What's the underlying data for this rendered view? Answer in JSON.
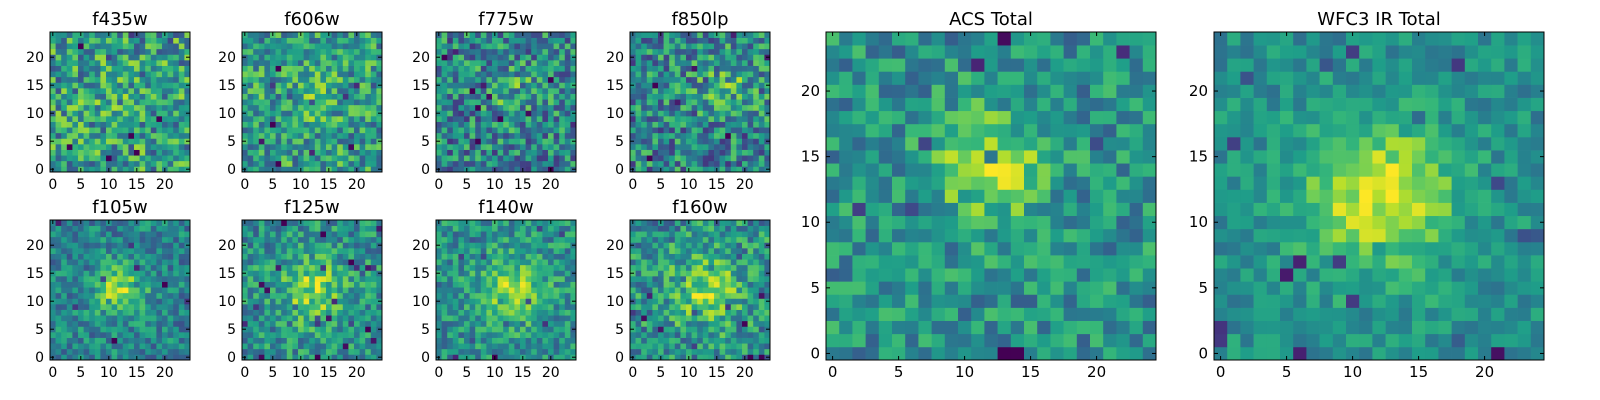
{
  "chart_data": [
    {
      "type": "heatmap",
      "title": "f435w",
      "grid_size": 25,
      "xlim": [
        0,
        24
      ],
      "ylim": [
        0,
        24
      ],
      "xticks": [
        "0",
        "5",
        "10",
        "15",
        "20"
      ],
      "yticks": [
        "0",
        "5",
        "10",
        "15",
        "20"
      ],
      "colormap": "viridis",
      "seed": 11,
      "blob": {
        "x": 12,
        "y": 12,
        "sigma": 4.0,
        "strength": 0.05
      },
      "noise": 0.62,
      "base": 0.55
    },
    {
      "type": "heatmap",
      "title": "f606w",
      "grid_size": 25,
      "xlim": [
        0,
        24
      ],
      "ylim": [
        0,
        24
      ],
      "xticks": [
        "0",
        "5",
        "10",
        "15",
        "20"
      ],
      "yticks": [
        "0",
        "5",
        "10",
        "15",
        "20"
      ],
      "colormap": "viridis",
      "seed": 23,
      "blob": {
        "x": 12,
        "y": 13,
        "sigma": 4.0,
        "strength": 0.1
      },
      "noise": 0.55,
      "base": 0.55
    },
    {
      "type": "heatmap",
      "title": "f775w",
      "grid_size": 25,
      "xlim": [
        0,
        24
      ],
      "ylim": [
        0,
        24
      ],
      "xticks": [
        "0",
        "5",
        "10",
        "15",
        "20"
      ],
      "yticks": [
        "0",
        "5",
        "10",
        "15",
        "20"
      ],
      "colormap": "viridis",
      "seed": 37,
      "blob": {
        "x": 13,
        "y": 14,
        "sigma": 3.5,
        "strength": 0.15
      },
      "noise": 0.6,
      "base": 0.45
    },
    {
      "type": "heatmap",
      "title": "f850lp",
      "grid_size": 25,
      "xlim": [
        0,
        24
      ],
      "ylim": [
        0,
        24
      ],
      "xticks": [
        "0",
        "5",
        "10",
        "15",
        "20"
      ],
      "yticks": [
        "0",
        "5",
        "10",
        "15",
        "20"
      ],
      "colormap": "viridis",
      "seed": 41,
      "blob": {
        "x": 17,
        "y": 15,
        "sigma": 4.0,
        "strength": 0.18
      },
      "noise": 0.6,
      "base": 0.45
    },
    {
      "type": "heatmap",
      "title": "f105w",
      "grid_size": 25,
      "xlim": [
        0,
        24
      ],
      "ylim": [
        0,
        24
      ],
      "xticks": [
        "0",
        "5",
        "10",
        "15",
        "20"
      ],
      "yticks": [
        "0",
        "5",
        "10",
        "15",
        "20"
      ],
      "colormap": "viridis",
      "seed": 53,
      "blob": {
        "x": 12,
        "y": 12,
        "sigma": 3.2,
        "strength": 0.4
      },
      "noise": 0.4,
      "base": 0.45
    },
    {
      "type": "heatmap",
      "title": "f125w",
      "grid_size": 25,
      "xlim": [
        0,
        24
      ],
      "ylim": [
        0,
        24
      ],
      "xticks": [
        "0",
        "5",
        "10",
        "15",
        "20"
      ],
      "yticks": [
        "0",
        "5",
        "10",
        "15",
        "20"
      ],
      "colormap": "viridis",
      "seed": 67,
      "blob": {
        "x": 12,
        "y": 12,
        "sigma": 4.0,
        "strength": 0.32
      },
      "noise": 0.45,
      "base": 0.5
    },
    {
      "type": "heatmap",
      "title": "f140w",
      "grid_size": 25,
      "xlim": [
        0,
        24
      ],
      "ylim": [
        0,
        24
      ],
      "xticks": [
        "0",
        "5",
        "10",
        "15",
        "20"
      ],
      "yticks": [
        "0",
        "5",
        "10",
        "15",
        "20"
      ],
      "colormap": "viridis",
      "seed": 79,
      "blob": {
        "x": 13,
        "y": 12,
        "sigma": 4.0,
        "strength": 0.35
      },
      "noise": 0.42,
      "base": 0.5
    },
    {
      "type": "heatmap",
      "title": "f160w",
      "grid_size": 25,
      "xlim": [
        0,
        24
      ],
      "ylim": [
        0,
        24
      ],
      "xticks": [
        "0",
        "5",
        "10",
        "15",
        "20"
      ],
      "yticks": [
        "0",
        "5",
        "10",
        "15",
        "20"
      ],
      "colormap": "viridis",
      "seed": 83,
      "blob": {
        "x": 13,
        "y": 12,
        "sigma": 4.5,
        "strength": 0.3
      },
      "noise": 0.5,
      "base": 0.5
    },
    {
      "type": "heatmap",
      "title": "ACS Total",
      "grid_size": 25,
      "xlim": [
        0,
        24
      ],
      "ylim": [
        0,
        24
      ],
      "xticks": [
        "0",
        "5",
        "10",
        "15",
        "20"
      ],
      "yticks": [
        "0",
        "5",
        "10",
        "15",
        "20"
      ],
      "colormap": "viridis",
      "seed": 97,
      "blob": {
        "x": 12,
        "y": 14,
        "sigma": 3.0,
        "strength": 0.35
      },
      "noise": 0.42,
      "base": 0.5
    },
    {
      "type": "heatmap",
      "title": "WFC3 IR Total",
      "grid_size": 25,
      "xlim": [
        0,
        24
      ],
      "ylim": [
        0,
        24
      ],
      "xticks": [
        "0",
        "5",
        "10",
        "15",
        "20"
      ],
      "yticks": [
        "0",
        "5",
        "10",
        "15",
        "20"
      ],
      "colormap": "viridis",
      "seed": 101,
      "blob": {
        "x": 12,
        "y": 12,
        "sigma": 4.0,
        "strength": 0.45
      },
      "noise": 0.28,
      "base": 0.5
    }
  ]
}
